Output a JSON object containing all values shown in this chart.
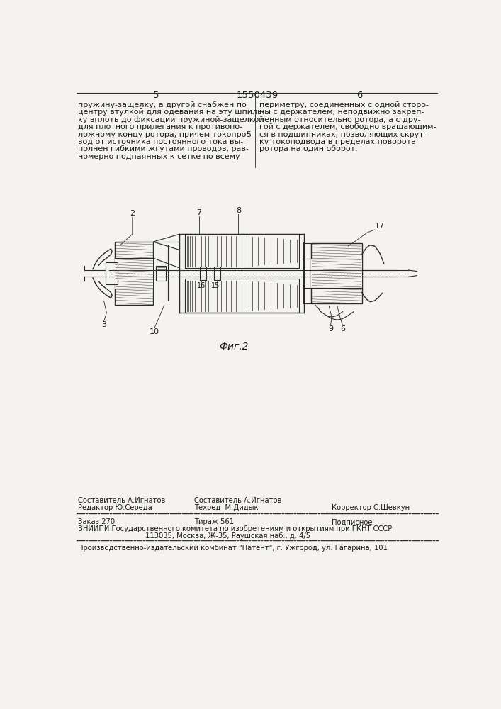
{
  "bg_color": "#f5f3ef",
  "page_number_left": "5",
  "page_number_center": "1550439",
  "page_number_right": "6",
  "col_left_text": [
    "пружину-защелку, а другой снабжен по",
    "центру втулкой для одевания на эту шпиль-",
    "ку вплоть до фиксации пружиной-защелкой",
    "для плотного прилегания к противопо-",
    "ложному концу ротора, причем токопро-",
    "вод от источника постоянного тока вы-",
    "полнен гибкими жгутами проводов, рав-",
    "номерно подпаянных к сетке по всему"
  ],
  "col_right_text": [
    "периметру, соединенных с одной сторо-",
    "ны с держателем, неподвижно закреп-",
    "ленным относительно ротора, а с дру-",
    "гой с держателем, свободно вращающим-",
    "ся в подшипниках, позволяющих скрут-",
    "ку токоподвода в пределах поворота",
    "ротора на один оборот."
  ],
  "fig_caption": "Фиг.2",
  "footer_top_col1": "Редактор Ю.Середа",
  "footer_top_col2_line1": "Составитель А.Игнатов",
  "footer_top_col2_line2": "Техред  М.Дидык",
  "footer_top_col3": "Корректор С.Шевкун",
  "footer_line1": "Заказ 270",
  "footer_line2": "Тираж 561",
  "footer_line3": "Подписное",
  "footer_vnipi": "ВНИИПИ Государственного комитета по изобретениям и открытиям при ГКНТ СССР",
  "footer_address": "113035, Москва, Ж-35, Раушская наб., д. 4/5",
  "footer_bottom": "Производственно-издательский комбинат \"Патент\", г. Ужгород, ул. Гагарина, 101",
  "text_color": "#1a1a1a",
  "line_color": "#2a2a2a",
  "hatch_color": "#555555",
  "font_size_body": 8.0,
  "font_size_small": 7.2,
  "font_size_page_num": 9.5,
  "font_size_label": 8.0
}
